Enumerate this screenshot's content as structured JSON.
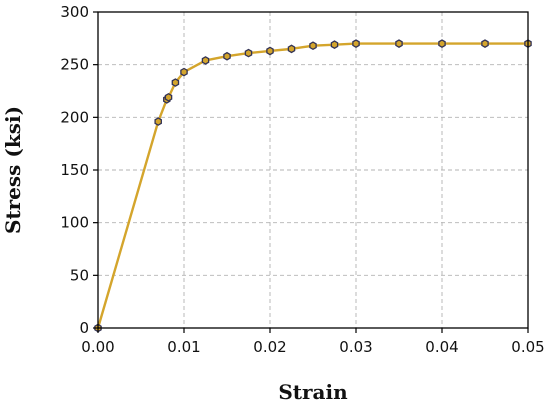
{
  "chart_data": {
    "type": "line",
    "title": "",
    "xlabel": "Strain",
    "ylabel": "Stress (ksi)",
    "xlim": [
      0,
      0.05
    ],
    "ylim": [
      0,
      300
    ],
    "xticks": [
      "0.00",
      "0.01",
      "0.02",
      "0.03",
      "0.04",
      "0.05"
    ],
    "yticks": [
      "0",
      "50",
      "100",
      "150",
      "200",
      "250",
      "300"
    ],
    "grid": true,
    "legend": "none",
    "series": [
      {
        "line_color": "#d4a52c",
        "marker_fill": "#d4a52c",
        "marker_edge": "#333355",
        "line": [
          [
            0.0,
            0
          ],
          [
            0.007,
            196
          ],
          [
            0.008,
            217
          ],
          [
            0.0082,
            219
          ],
          [
            0.009,
            233
          ],
          [
            0.01,
            243
          ],
          [
            0.0125,
            254
          ],
          [
            0.015,
            258
          ],
          [
            0.0175,
            261
          ],
          [
            0.02,
            263
          ],
          [
            0.0225,
            265
          ],
          [
            0.025,
            268
          ],
          [
            0.0275,
            269
          ],
          [
            0.03,
            270
          ],
          [
            0.035,
            270
          ],
          [
            0.04,
            270
          ],
          [
            0.045,
            270
          ],
          [
            0.05,
            270
          ]
        ],
        "markers": [
          [
            0.0,
            0
          ],
          [
            0.007,
            196
          ],
          [
            0.008,
            217
          ],
          [
            0.0082,
            219
          ],
          [
            0.009,
            233
          ],
          [
            0.01,
            243
          ],
          [
            0.0125,
            254
          ],
          [
            0.015,
            258
          ],
          [
            0.0175,
            261
          ],
          [
            0.02,
            263
          ],
          [
            0.0225,
            265
          ],
          [
            0.025,
            268
          ],
          [
            0.0275,
            269
          ],
          [
            0.03,
            270
          ],
          [
            0.035,
            270
          ],
          [
            0.04,
            270
          ],
          [
            0.045,
            270
          ],
          [
            0.05,
            270
          ]
        ]
      }
    ]
  }
}
